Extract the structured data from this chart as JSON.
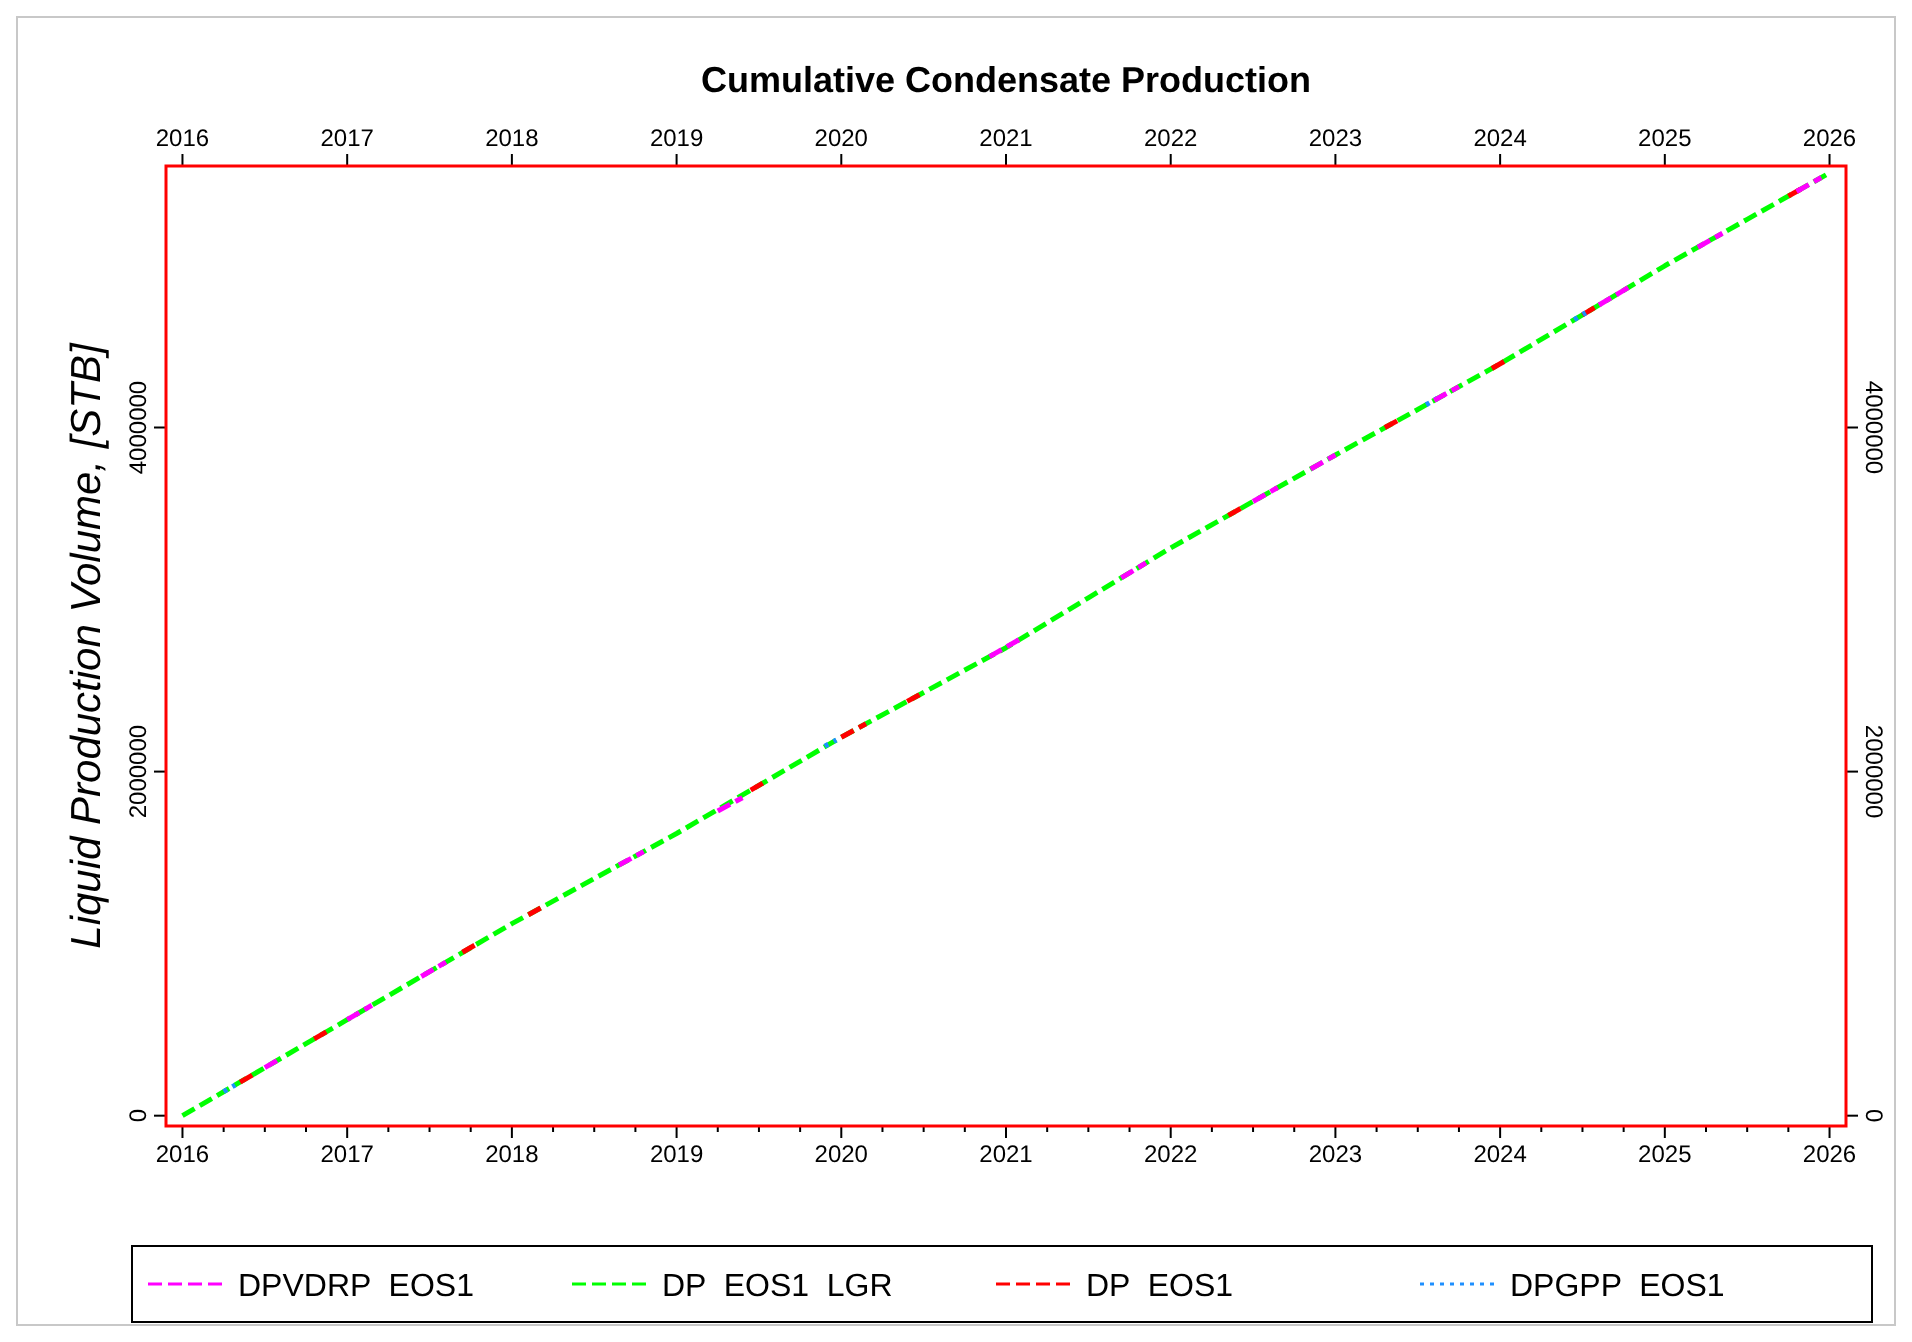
{
  "chart_data": {
    "type": "line",
    "title": "Cumulative Condensate Production",
    "ylabel": "Liquid Production Volume, [STB]",
    "xlim": [
      2015.9,
      2026.1
    ],
    "ylim": [
      -60000,
      5520000
    ],
    "y2lim": [
      -60000,
      5520000
    ],
    "x2lim": [
      2015.9,
      2026.1
    ],
    "xticks": [
      2016,
      {
        "value": 2016.25,
        "label": null
      },
      {
        "value": 2016.5,
        "label": null
      },
      {
        "value": 2016.75,
        "label": null
      },
      2017,
      {
        "value": 2017.25,
        "label": null
      },
      {
        "value": 2017.5,
        "label": null
      },
      {
        "value": 2017.75,
        "label": null
      },
      2018,
      {
        "value": 2018.25,
        "label": null
      },
      {
        "value": 2018.5,
        "label": null
      },
      {
        "value": 2018.75,
        "label": null
      },
      2019,
      {
        "value": 2019.25,
        "label": null
      },
      {
        "value": 2019.5,
        "label": null
      },
      {
        "value": 2019.75,
        "label": null
      },
      2020,
      {
        "value": 2020.25,
        "label": null
      },
      {
        "value": 2020.5,
        "label": null
      },
      {
        "value": 2020.75,
        "label": null
      },
      2021,
      {
        "value": 2021.25,
        "label": null
      },
      {
        "value": 2021.5,
        "label": null
      },
      {
        "value": 2021.75,
        "label": null
      },
      2022,
      {
        "value": 2022.25,
        "label": null
      },
      {
        "value": 2022.5,
        "label": null
      },
      {
        "value": 2022.75,
        "label": null
      },
      2023,
      {
        "value": 2023.25,
        "label": null
      },
      {
        "value": 2023.5,
        "label": null
      },
      {
        "value": 2023.75,
        "label": null
      },
      2024,
      {
        "value": 2024.25,
        "label": null
      },
      {
        "value": 2024.5,
        "label": null
      },
      {
        "value": 2024.75,
        "label": null
      },
      2025,
      {
        "value": 2025.25,
        "label": null
      },
      {
        "value": 2025.5,
        "label": null
      },
      {
        "value": 2025.75,
        "label": null
      },
      2026
    ],
    "x2ticks": [
      2016,
      2017,
      2018,
      2019,
      2020,
      2021,
      2022,
      2023,
      2024,
      2025,
      2026
    ],
    "yticks": [
      0,
      2000000,
      4000000
    ],
    "y2ticks": [
      0,
      2000000,
      4000000
    ],
    "legend": "bottom",
    "grid": false,
    "series": [
      {
        "name": "DP  EOS1  LGR",
        "color": "#00ff00",
        "line_style": "dashed",
        "x": [
          2016,
          2016.5,
          2017,
          2017.5,
          2018,
          2018.5,
          2019,
          2019.5,
          2020,
          2020.5,
          2021,
          2021.5,
          2022,
          2022.5,
          2023,
          2023.5,
          2024,
          2024.5,
          2025,
          2025.5,
          2026
        ],
        "values": [
          0,
          279000,
          558000,
          837000,
          1116000,
          1378000,
          1640000,
          1920000,
          2200000,
          2460000,
          2720000,
          3010000,
          3300000,
          3570000,
          3840000,
          4105000,
          4370000,
          4655000,
          4940000,
          5210000,
          5480000
        ]
      },
      {
        "name": "DP  EOS1",
        "color": "#ff0000",
        "line_style": "dashed",
        "x": [
          2016.35,
          2016.45,
          2016.5,
          2016.8,
          2016.9,
          2016.95,
          2017.7,
          2017.8,
          2017.85,
          2018.1,
          2018.2,
          2018.25,
          2019.45,
          2019.55,
          2019.6,
          2020.0,
          2020.15,
          2020.2,
          2020.4,
          2020.5,
          2020.55,
          2022.35,
          2022.45,
          2022.5,
          2023.3,
          2023.4,
          2023.45,
          2023.95,
          2024.05,
          2024.1,
          2024.5,
          2024.6,
          2024.65,
          2025.75,
          2025.85
        ],
        "values": [
          195000,
          250000,
          null,
          446000,
          502000,
          null,
          950000,
          1005000,
          null,
          1168000,
          1220000,
          null,
          1892000,
          1948000,
          null,
          2200000,
          2278000,
          null,
          2408000,
          2460000,
          null,
          3489000,
          3543000,
          null,
          4000000,
          4052000,
          null,
          4343000,
          4398000,
          null,
          4655000,
          4712000,
          null,
          5345000,
          5399000
        ]
      },
      {
        "name": "DPGPP  EOS1",
        "color": "#1e90ff",
        "line_style": "dotted",
        "x": [
          2016.25,
          2016.32,
          2016.4,
          2019.9,
          2019.97,
          2020.0,
          2023.55,
          2023.62,
          2023.7,
          2024.45,
          2024.52
        ],
        "values": [
          140000,
          178000,
          null,
          2148000,
          2184000,
          null,
          4132000,
          4170000,
          null,
          4627000,
          4667000
        ]
      },
      {
        "name": "DPVDRP  EOS1",
        "color": "#ff00ff",
        "line_style": "dashed",
        "x": [
          2016.5,
          2016.6,
          2016.7,
          2017.0,
          2017.15,
          2017.2,
          2017.45,
          2017.6,
          2017.65,
          2018.65,
          2018.8,
          2018.85,
          2019.25,
          2019.4,
          2019.45,
          2020.9,
          2021.1,
          2021.15,
          2021.7,
          2021.85,
          2021.9,
          2022.5,
          2022.65,
          2022.7,
          2022.85,
          2023.0,
          2023.05,
          2023.6,
          2023.75,
          2023.8,
          2024.6,
          2024.8,
          2024.85,
          2025.2,
          2025.35,
          2025.4,
          2025.8,
          2025.95
        ],
        "values": [
          279000,
          335000,
          null,
          558000,
          642000,
          null,
          809000,
          893000,
          null,
          1457000,
          1535000,
          null,
          1771000,
          1848000,
          null,
          2668000,
          2778000,
          null,
          3126000,
          3213000,
          null,
          3570000,
          3651000,
          null,
          3759000,
          3840000,
          null,
          4158000,
          4238000,
          null,
          4712000,
          4826000,
          null,
          5048000,
          5129000,
          null,
          5372000,
          5453000
        ]
      }
    ]
  }
}
